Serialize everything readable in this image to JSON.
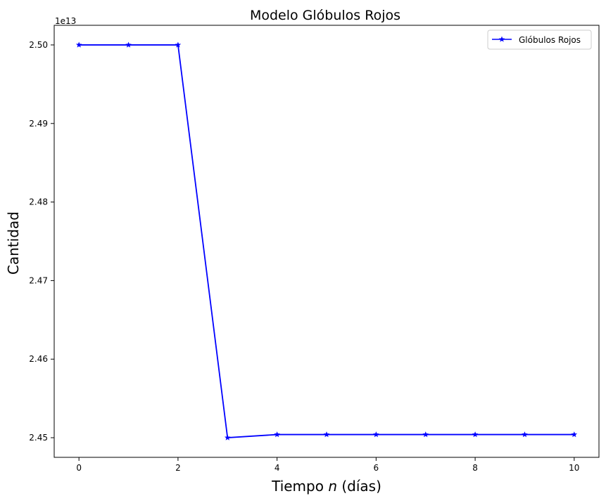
{
  "chart_data": {
    "type": "line",
    "title": "Modelo Glóbulos Rojos",
    "xlabel_parts": [
      "Tiempo ",
      "n",
      " (días)"
    ],
    "ylabel": "Cantidad",
    "y_offset_label": "1e13",
    "xlim": [
      -0.5,
      10.5
    ],
    "ylim": [
      2.4475,
      2.5025
    ],
    "x_ticks": [
      0,
      2,
      4,
      6,
      8,
      10
    ],
    "y_ticks": [
      2.45,
      2.46,
      2.47,
      2.48,
      2.49,
      2.5
    ],
    "y_tick_labels": [
      "2.45",
      "2.46",
      "2.47",
      "2.48",
      "2.49",
      "2.50"
    ],
    "grid": false,
    "legend_position": "top-right",
    "series": [
      {
        "name": "Glóbulos Rojos",
        "color": "#0000ff",
        "marker": "star",
        "x": [
          0,
          1,
          2,
          3,
          4,
          5,
          6,
          7,
          8,
          9,
          10
        ],
        "y": [
          2.5,
          2.5,
          2.5,
          2.45,
          2.4504,
          2.4504,
          2.4504,
          2.4504,
          2.4504,
          2.4504,
          2.4504
        ]
      }
    ]
  }
}
